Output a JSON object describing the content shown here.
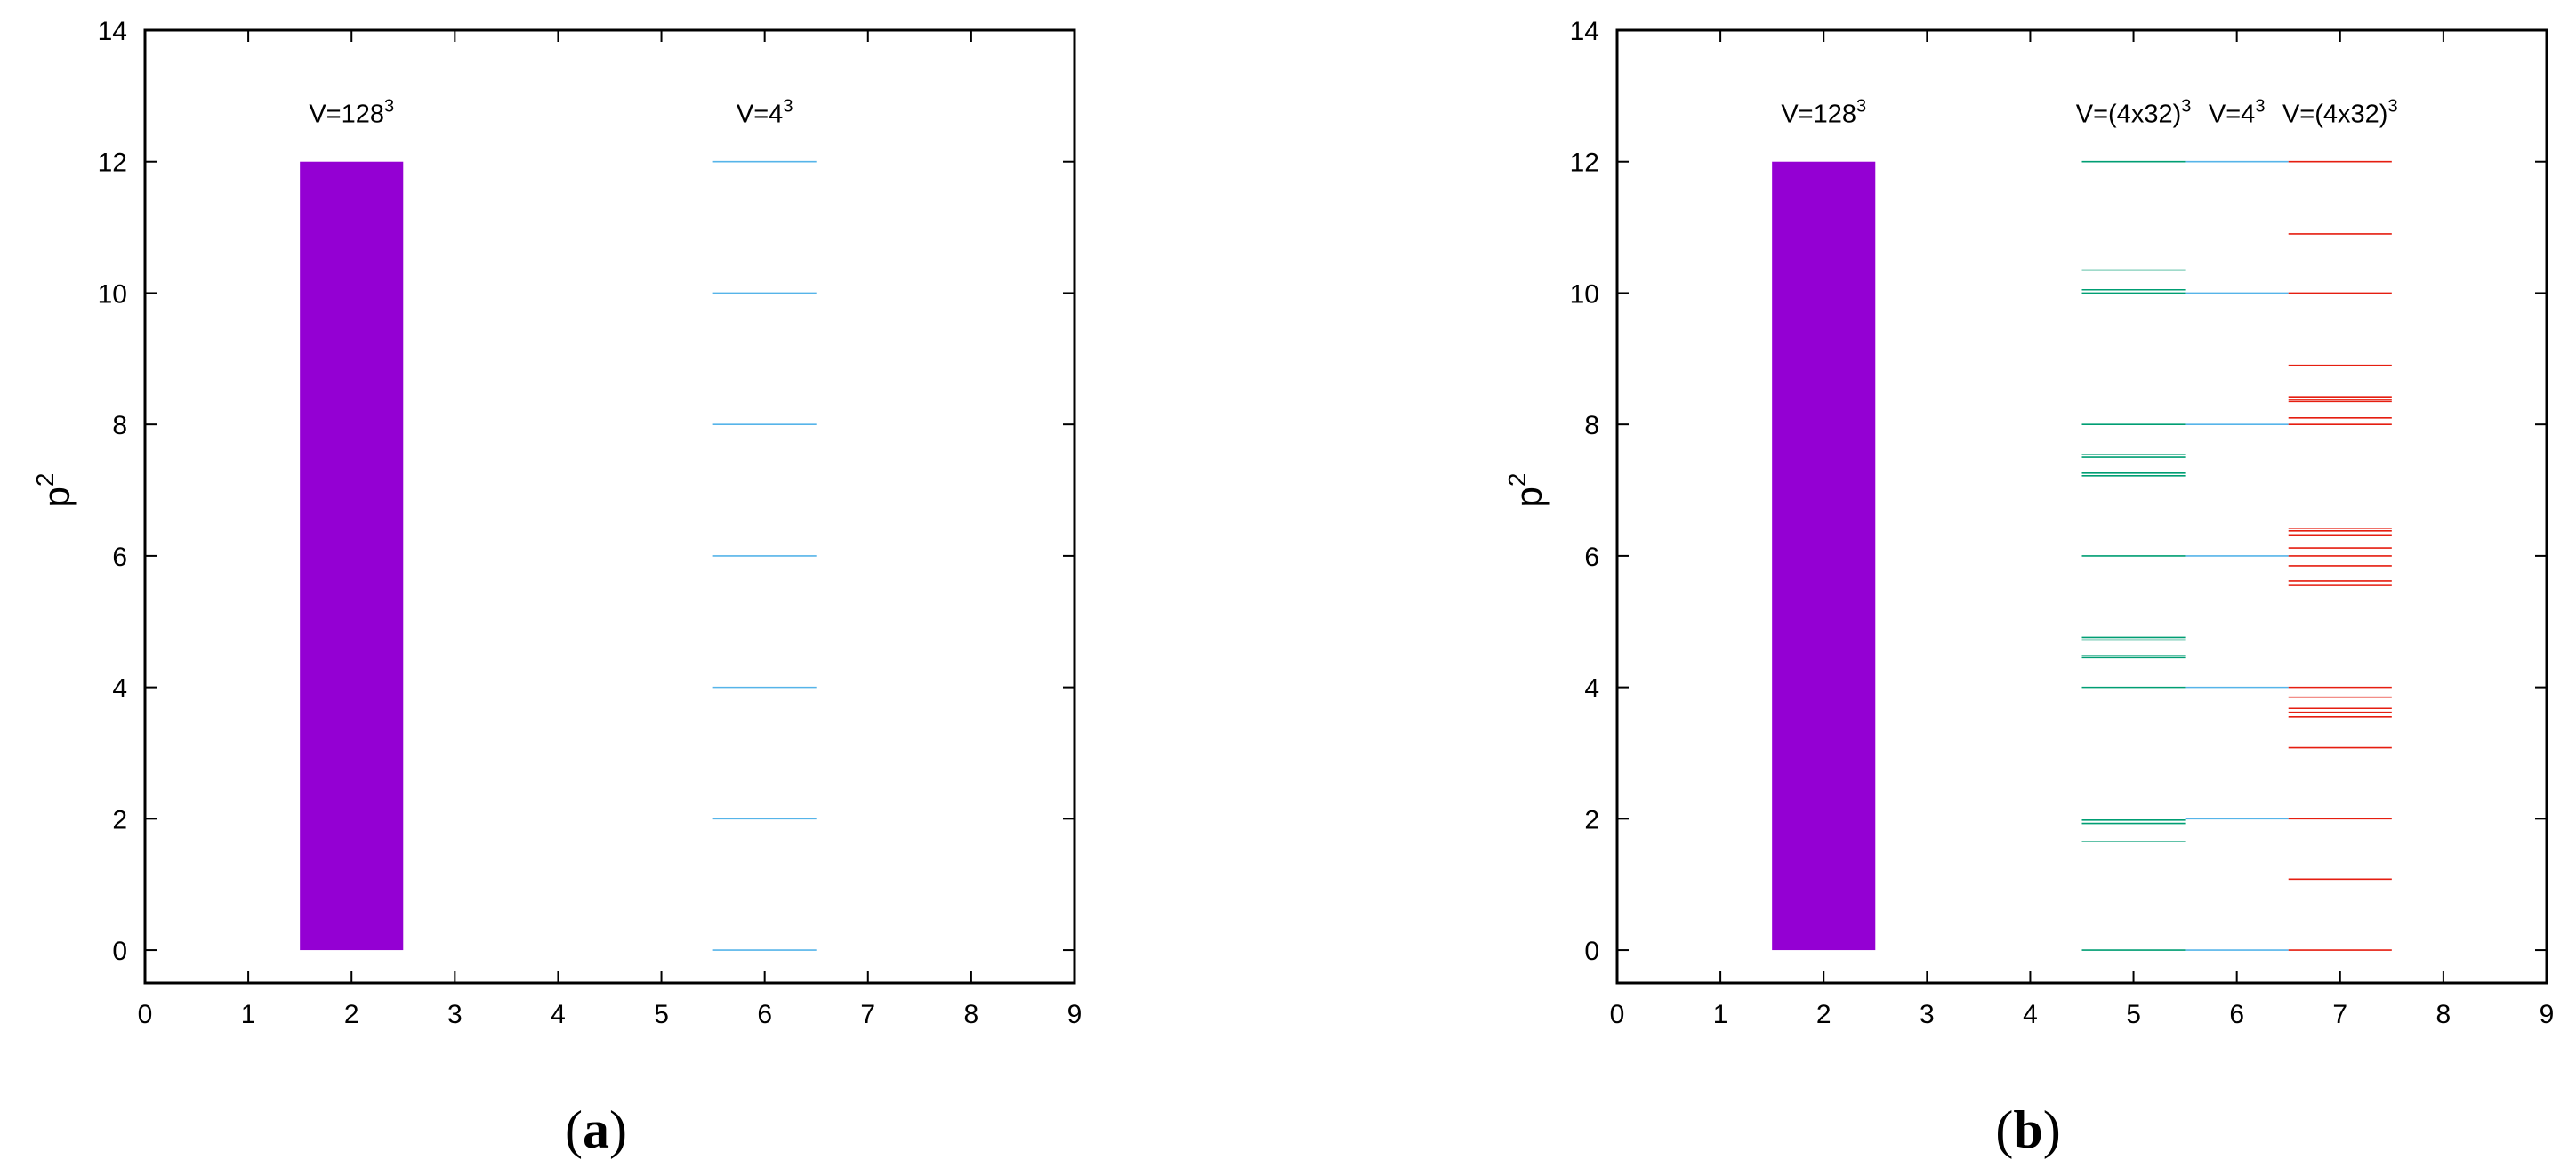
{
  "chart_data": [
    {
      "type": "bar",
      "panel_label": {
        "open": "(",
        "letter": "a",
        "close": ")"
      },
      "xlim": [
        0,
        9
      ],
      "ylim": [
        -0.5,
        14
      ],
      "xticks": [
        "0",
        "1",
        "2",
        "3",
        "4",
        "5",
        "6",
        "7",
        "8",
        "9"
      ],
      "yticks": [
        "0",
        "2",
        "4",
        "6",
        "8",
        "10",
        "12",
        "14"
      ],
      "ylabel": {
        "base": "p",
        "sup": "2"
      },
      "xlabel": "",
      "grid": false,
      "bands": [
        {
          "x_from": 1.5,
          "x_to": 2.5,
          "y_from": 0,
          "y_to": 12,
          "color": "#9400d3",
          "label": {
            "base": "V=128",
            "sup": "3"
          }
        }
      ],
      "series": [
        {
          "x_from": 5.5,
          "x_to": 6.5,
          "color": "#56b4e9",
          "values": [
            0,
            2,
            4,
            6,
            8,
            10,
            12
          ],
          "label": {
            "base": "V=4",
            "sup": "3"
          }
        }
      ]
    },
    {
      "type": "bar",
      "panel_label": {
        "open": "(",
        "letter": "b",
        "close": ")"
      },
      "xlim": [
        0,
        9
      ],
      "ylim": [
        -0.5,
        14
      ],
      "xticks": [
        "0",
        "1",
        "2",
        "3",
        "4",
        "5",
        "6",
        "7",
        "8",
        "9"
      ],
      "yticks": [
        "0",
        "2",
        "4",
        "6",
        "8",
        "10",
        "12",
        "14"
      ],
      "ylabel": {
        "base": "p",
        "sup": "2"
      },
      "xlabel": "",
      "grid": false,
      "bands": [
        {
          "x_from": 1.5,
          "x_to": 2.5,
          "y_from": 0,
          "y_to": 12,
          "color": "#9400d3",
          "label": {
            "base": "V=128",
            "sup": "3"
          }
        }
      ],
      "series": [
        {
          "x_from": 4.5,
          "x_to": 5.5,
          "color": "#009e73",
          "values": [
            0,
            1.65,
            1.93,
            1.98,
            4.0,
            4.45,
            4.48,
            4.72,
            4.76,
            6.0,
            7.22,
            7.26,
            7.5,
            7.54,
            8.0,
            10.0,
            10.05,
            10.35,
            12.0
          ],
          "label": {
            "base": "V=(4x32)",
            "sup": "3"
          }
        },
        {
          "x_from": 5.5,
          "x_to": 6.5,
          "color": "#56b4e9",
          "values": [
            0,
            2,
            4,
            6,
            8,
            10,
            12
          ],
          "label": {
            "base": "V=4",
            "sup": "3"
          }
        },
        {
          "x_from": 6.5,
          "x_to": 7.5,
          "color": "#e51e10",
          "values": [
            0,
            1.08,
            2.0,
            3.08,
            3.55,
            3.62,
            3.68,
            3.85,
            4.0,
            5.55,
            5.62,
            5.85,
            6.0,
            6.12,
            6.32,
            6.38,
            6.42,
            8.0,
            8.1,
            8.35,
            8.38,
            8.42,
            8.9,
            10.0,
            10.9,
            12.0
          ],
          "label": {
            "base": "V=(4x32)",
            "sup": "3"
          }
        }
      ]
    }
  ]
}
